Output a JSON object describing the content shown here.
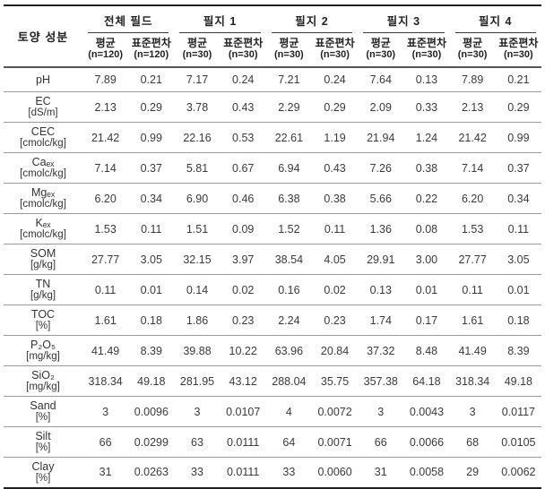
{
  "table": {
    "corner_label": "토양 성분",
    "groups": [
      {
        "label": "전체 필드",
        "mean": "평균",
        "mean_n": "(n=120)",
        "sd": "표준편차",
        "sd_n": "(n=120)"
      },
      {
        "label": "필지 1",
        "mean": "평균",
        "mean_n": "(n=30)",
        "sd": "표준편차",
        "sd_n": "(n=30)"
      },
      {
        "label": "필지 2",
        "mean": "평균",
        "mean_n": "(n=30)",
        "sd": "표준편차",
        "sd_n": "(n=30)"
      },
      {
        "label": "필지 3",
        "mean": "평균",
        "mean_n": "(n=30)",
        "sd": "표준편차",
        "sd_n": "(n=30)"
      },
      {
        "label": "필지 4",
        "mean": "평균",
        "mean_n": "(n=30)",
        "sd": "표준편차",
        "sd_n": "(n=30)"
      }
    ],
    "rows": [
      {
        "name": "pH",
        "unit": "",
        "values": [
          "7.89",
          "0.21",
          "7.17",
          "0.24",
          "7.21",
          "0.24",
          "7.64",
          "0.13",
          "7.89",
          "0.21"
        ]
      },
      {
        "name": "EC",
        "unit": "[dS/m]",
        "values": [
          "2.13",
          "0.29",
          "3.78",
          "0.43",
          "2.29",
          "0.29",
          "2.09",
          "0.33",
          "2.13",
          "0.29"
        ]
      },
      {
        "name": "CEC",
        "unit": "[cmolc/kg]",
        "values": [
          "21.42",
          "0.99",
          "22.16",
          "0.53",
          "22.61",
          "1.19",
          "21.94",
          "1.24",
          "21.42",
          "0.99"
        ]
      },
      {
        "name": "Caₑₓ",
        "unit": "[cmolc/kg]",
        "values": [
          "7.14",
          "0.37",
          "5.81",
          "0.67",
          "6.94",
          "0.43",
          "7.26",
          "0.38",
          "7.14",
          "0.37"
        ]
      },
      {
        "name": "Mgₑₓ",
        "unit": "[cmolc/kg]",
        "values": [
          "6.20",
          "0.34",
          "6.90",
          "0.46",
          "6.38",
          "0.38",
          "5.66",
          "0.22",
          "6.20",
          "0.34"
        ]
      },
      {
        "name": "Kₑₓ",
        "unit": "[cmolc/kg]",
        "values": [
          "1.53",
          "0.11",
          "1.51",
          "0.09",
          "1.52",
          "0.11",
          "1.36",
          "0.08",
          "1.53",
          "0.11"
        ]
      },
      {
        "name": "SOM",
        "unit": "[g/kg]",
        "values": [
          "27.77",
          "3.05",
          "32.15",
          "3.97",
          "38.54",
          "4.05",
          "29.91",
          "3.00",
          "27.77",
          "3.05"
        ]
      },
      {
        "name": "TN",
        "unit": "[g/kg]",
        "values": [
          "0.11",
          "0.01",
          "0.14",
          "0.02",
          "0.16",
          "0.02",
          "0.13",
          "0.01",
          "0.11",
          "0.01"
        ]
      },
      {
        "name": "TOC",
        "unit": "[%]",
        "values": [
          "1.61",
          "0.18",
          "1.86",
          "0.23",
          "2.24",
          "0.23",
          "1.74",
          "0.17",
          "1.61",
          "0.18"
        ]
      },
      {
        "name": "P₂O₅",
        "unit": "[mg/kg]",
        "values": [
          "41.49",
          "8.39",
          "39.88",
          "10.22",
          "63.96",
          "20.84",
          "37.32",
          "8.48",
          "41.49",
          "8.39"
        ]
      },
      {
        "name": "SiO₂",
        "unit": "[mg/kg]",
        "values": [
          "318.34",
          "49.18",
          "281.95",
          "43.12",
          "288.04",
          "35.75",
          "357.38",
          "64.18",
          "318.34",
          "49.18"
        ]
      },
      {
        "name": "Sand",
        "unit": "[%]",
        "values": [
          "3",
          "0.0096",
          "3",
          "0.0107",
          "4",
          "0.0072",
          "3",
          "0.0043",
          "3",
          "0.0117"
        ]
      },
      {
        "name": "Silt",
        "unit": "[%]",
        "values": [
          "66",
          "0.0299",
          "63",
          "0.0111",
          "64",
          "0.0071",
          "66",
          "0.0066",
          "68",
          "0.0105"
        ]
      },
      {
        "name": "Clay",
        "unit": "[%]",
        "values": [
          "31",
          "0.0263",
          "33",
          "0.0111",
          "33",
          "0.0060",
          "31",
          "0.0058",
          "29",
          "0.0062"
        ]
      }
    ],
    "colors": {
      "rule_heavy": "#1f1f1f",
      "rule_medium": "#555555",
      "rule_light": "#999999",
      "text": "#333333"
    }
  }
}
